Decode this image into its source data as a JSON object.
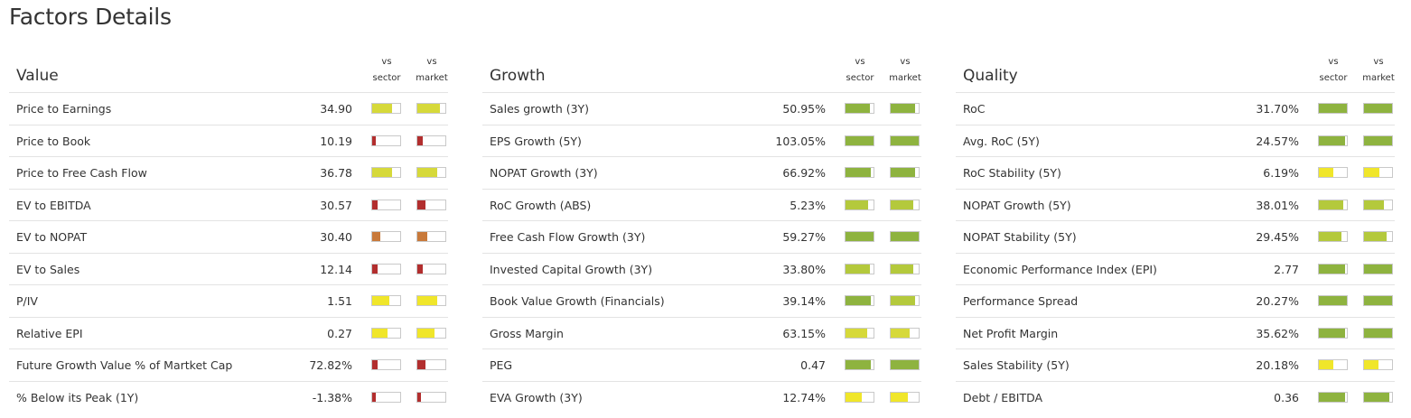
{
  "page_title": "Factors Details",
  "column_headers": {
    "sector_top": "vs",
    "sector_bottom": "sector",
    "market_top": "vs",
    "market_bottom": "market"
  },
  "colors": {
    "red": "#b22e2e",
    "orange": "#c8793a",
    "yellow": "#f0e62a",
    "yellow_green": "#d6d93a",
    "light_green": "#b4c93c",
    "green": "#8eb33f"
  },
  "panels": [
    {
      "title": "Value",
      "rows": [
        {
          "label": "Price to Earnings",
          "value": "34.90",
          "sector": {
            "level": 0.7,
            "color": "#d6d93a"
          },
          "market": {
            "level": 0.8,
            "color": "#d6d93a"
          }
        },
        {
          "label": "Price to Book",
          "value": "10.19",
          "sector": {
            "level": 0.12,
            "color": "#b22e2e"
          },
          "market": {
            "level": 0.18,
            "color": "#b22e2e"
          }
        },
        {
          "label": "Price to Free Cash Flow",
          "value": "36.78",
          "sector": {
            "level": 0.7,
            "color": "#d6d93a"
          },
          "market": {
            "level": 0.7,
            "color": "#d6d93a"
          }
        },
        {
          "label": "EV to EBITDA",
          "value": "30.57",
          "sector": {
            "level": 0.18,
            "color": "#b22e2e"
          },
          "market": {
            "level": 0.3,
            "color": "#b22e2e"
          }
        },
        {
          "label": "EV to NOPAT",
          "value": "30.40",
          "sector": {
            "level": 0.28,
            "color": "#c8793a"
          },
          "market": {
            "level": 0.35,
            "color": "#c8793a"
          }
        },
        {
          "label": "EV to Sales",
          "value": "12.14",
          "sector": {
            "level": 0.18,
            "color": "#b22e2e"
          },
          "market": {
            "level": 0.2,
            "color": "#b22e2e"
          }
        },
        {
          "label": "P/IV",
          "value": "1.51",
          "sector": {
            "level": 0.62,
            "color": "#f0e62a"
          },
          "market": {
            "level": 0.7,
            "color": "#f0e62a"
          }
        },
        {
          "label": "Relative EPI",
          "value": "0.27",
          "sector": {
            "level": 0.55,
            "color": "#f0e62a"
          },
          "market": {
            "level": 0.62,
            "color": "#f0e62a"
          }
        },
        {
          "label": "Future Growth Value % of Martket Cap",
          "value": "72.82%",
          "sector": {
            "level": 0.18,
            "color": "#b22e2e"
          },
          "market": {
            "level": 0.3,
            "color": "#b22e2e"
          }
        },
        {
          "label": "% Below its Peak (1Y)",
          "value": "-1.38%",
          "sector": {
            "level": 0.12,
            "color": "#b22e2e"
          },
          "market": {
            "level": 0.14,
            "color": "#b22e2e"
          }
        }
      ]
    },
    {
      "title": "Growth",
      "rows": [
        {
          "label": "Sales growth (3Y)",
          "value": "50.95%",
          "sector": {
            "level": 0.88,
            "color": "#8eb33f"
          },
          "market": {
            "level": 0.86,
            "color": "#8eb33f"
          }
        },
        {
          "label": "EPS Growth (5Y)",
          "value": "103.05%",
          "sector": {
            "level": 1.0,
            "color": "#8eb33f"
          },
          "market": {
            "level": 1.0,
            "color": "#8eb33f"
          }
        },
        {
          "label": "NOPAT Growth (3Y)",
          "value": "66.92%",
          "sector": {
            "level": 0.9,
            "color": "#8eb33f"
          },
          "market": {
            "level": 0.88,
            "color": "#8eb33f"
          }
        },
        {
          "label": "RoC Growth (ABS)",
          "value": "5.23%",
          "sector": {
            "level": 0.82,
            "color": "#b4c93c"
          },
          "market": {
            "level": 0.8,
            "color": "#b4c93c"
          }
        },
        {
          "label": "Free Cash Flow Growth (3Y)",
          "value": "59.27%",
          "sector": {
            "level": 1.0,
            "color": "#8eb33f"
          },
          "market": {
            "level": 1.0,
            "color": "#8eb33f"
          }
        },
        {
          "label": "Invested Capital Growth (3Y)",
          "value": "33.80%",
          "sector": {
            "level": 0.86,
            "color": "#b4c93c"
          },
          "market": {
            "level": 0.82,
            "color": "#b4c93c"
          }
        },
        {
          "label": "Book Value Growth (Financials)",
          "value": "39.14%",
          "sector": {
            "level": 0.9,
            "color": "#8eb33f"
          },
          "market": {
            "level": 0.88,
            "color": "#b4c93c"
          }
        },
        {
          "label": "Gross Margin",
          "value": "63.15%",
          "sector": {
            "level": 0.78,
            "color": "#d6d93a"
          },
          "market": {
            "level": 0.68,
            "color": "#d6d93a"
          }
        },
        {
          "label": "PEG",
          "value": "0.47",
          "sector": {
            "level": 0.9,
            "color": "#8eb33f"
          },
          "market": {
            "level": 1.0,
            "color": "#8eb33f"
          }
        },
        {
          "label": "EVA Growth (3Y)",
          "value": "12.74%",
          "sector": {
            "level": 0.58,
            "color": "#f0e62a"
          },
          "market": {
            "level": 0.6,
            "color": "#f0e62a"
          }
        }
      ]
    },
    {
      "title": "Quality",
      "rows": [
        {
          "label": "RoC",
          "value": "31.70%",
          "sector": {
            "level": 1.0,
            "color": "#8eb33f"
          },
          "market": {
            "level": 1.0,
            "color": "#8eb33f"
          }
        },
        {
          "label": "Avg. RoC (5Y)",
          "value": "24.57%",
          "sector": {
            "level": 0.95,
            "color": "#8eb33f"
          },
          "market": {
            "level": 1.0,
            "color": "#8eb33f"
          }
        },
        {
          "label": "RoC Stability (5Y)",
          "value": "6.19%",
          "sector": {
            "level": 0.5,
            "color": "#f0e62a"
          },
          "market": {
            "level": 0.55,
            "color": "#f0e62a"
          }
        },
        {
          "label": "NOPAT Growth (5Y)",
          "value": "38.01%",
          "sector": {
            "level": 0.88,
            "color": "#b4c93c"
          },
          "market": {
            "level": 0.7,
            "color": "#b4c93c"
          }
        },
        {
          "label": "NOPAT Stability (5Y)",
          "value": "29.45%",
          "sector": {
            "level": 0.8,
            "color": "#b4c93c"
          },
          "market": {
            "level": 0.8,
            "color": "#b4c93c"
          }
        },
        {
          "label": "Economic Performance Index (EPI)",
          "value": "2.77",
          "sector": {
            "level": 0.95,
            "color": "#8eb33f"
          },
          "market": {
            "level": 1.0,
            "color": "#8eb33f"
          }
        },
        {
          "label": "Performance Spread",
          "value": "20.27%",
          "sector": {
            "level": 1.0,
            "color": "#8eb33f"
          },
          "market": {
            "level": 1.0,
            "color": "#8eb33f"
          }
        },
        {
          "label": "Net Profit Margin",
          "value": "35.62%",
          "sector": {
            "level": 0.95,
            "color": "#8eb33f"
          },
          "market": {
            "level": 1.0,
            "color": "#8eb33f"
          }
        },
        {
          "label": "Sales Stability (5Y)",
          "value": "20.18%",
          "sector": {
            "level": 0.5,
            "color": "#f0e62a"
          },
          "market": {
            "level": 0.52,
            "color": "#f0e62a"
          }
        },
        {
          "label": "Debt / EBITDA",
          "value": "0.36",
          "sector": {
            "level": 0.95,
            "color": "#8eb33f"
          },
          "market": {
            "level": 0.9,
            "color": "#8eb33f"
          }
        }
      ]
    }
  ]
}
